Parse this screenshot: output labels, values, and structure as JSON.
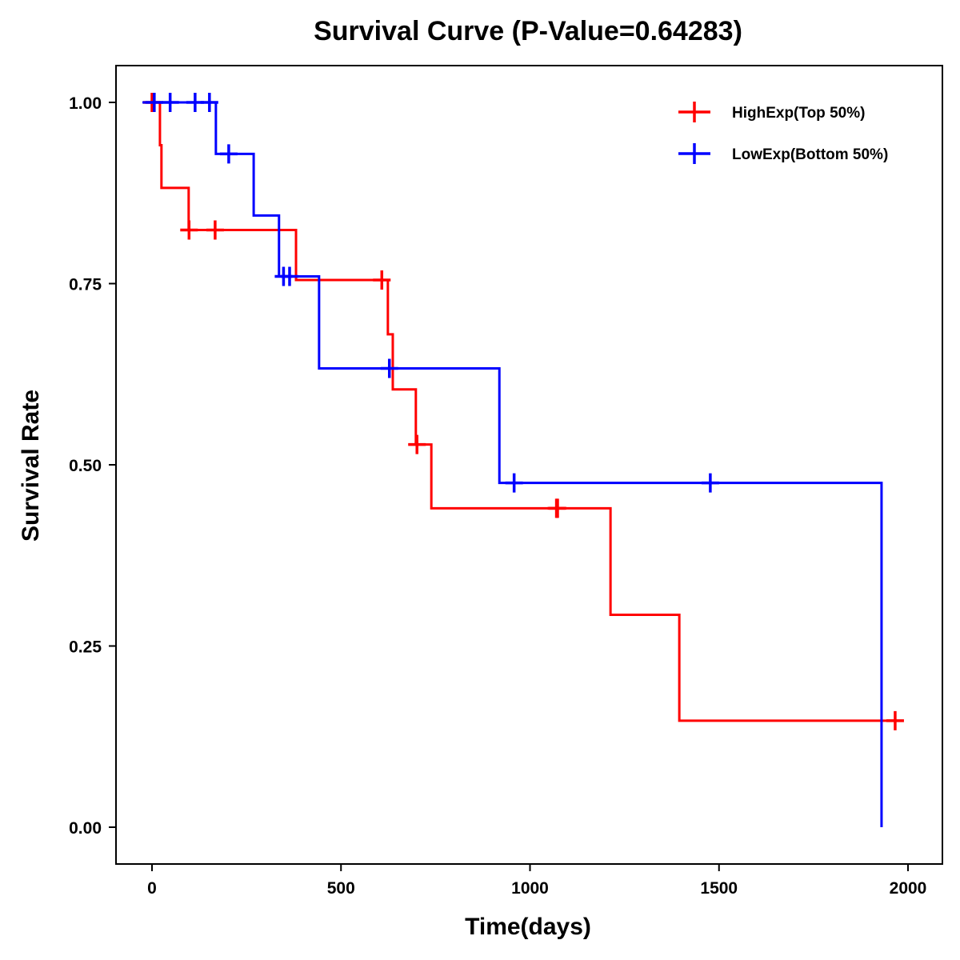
{
  "chart_data": {
    "type": "line",
    "subtype": "kaplan-meier step",
    "title": "Survival Curve (P-Value=0.64283)",
    "xlabel": "Time(days)",
    "ylabel": "Survival Rate",
    "xlim": [
      -100,
      2080
    ],
    "ylim": [
      -0.05,
      1.05
    ],
    "x_ticks": [
      0,
      500,
      1000,
      1500,
      2000
    ],
    "x_tick_labels": [
      "0",
      "500",
      "1000",
      "1500",
      "2000"
    ],
    "y_ticks": [
      0,
      0.25,
      0.5,
      0.75,
      1.0
    ],
    "y_tick_labels": [
      "0.00",
      "0.25",
      "0.50",
      "0.75",
      "1.00"
    ],
    "grid": false,
    "legend": {
      "position": "top-right"
    },
    "series": [
      {
        "name": "HighExp(Top 50%)",
        "color": "#ff0000",
        "steps": [
          [
            0,
            1.0
          ],
          [
            21,
            0.941
          ],
          [
            25,
            0.882
          ],
          [
            97,
            0.824
          ],
          [
            381,
            0.755
          ],
          [
            624,
            0.68
          ],
          [
            637,
            0.604
          ],
          [
            698,
            0.528
          ],
          [
            739,
            0.44
          ],
          [
            1213,
            0.293
          ],
          [
            1395,
            0.147
          ]
        ],
        "end_time": 1966,
        "censored": [
          [
            0,
            1.0
          ],
          [
            98,
            0.824
          ],
          [
            167,
            0.824
          ],
          [
            608,
            0.755
          ],
          [
            701,
            0.528
          ],
          [
            1070,
            0.44
          ],
          [
            1073,
            0.44
          ],
          [
            1966,
            0.147
          ]
        ]
      },
      {
        "name": "LowExp(Bottom 50%)",
        "color": "#0000ff",
        "steps": [
          [
            0,
            1.0
          ],
          [
            169,
            0.929
          ],
          [
            269,
            0.844
          ],
          [
            336,
            0.76
          ],
          [
            442,
            0.633
          ],
          [
            919,
            0.475
          ],
          [
            1930,
            0.0
          ]
        ],
        "end_time": 1930,
        "censored": [
          [
            6,
            1.0
          ],
          [
            48,
            1.0
          ],
          [
            114,
            1.0
          ],
          [
            152,
            1.0
          ],
          [
            203,
            0.929
          ],
          [
            348,
            0.76
          ],
          [
            364,
            0.76
          ],
          [
            628,
            0.633
          ],
          [
            958,
            0.475
          ],
          [
            1477,
            0.475
          ]
        ]
      }
    ]
  }
}
